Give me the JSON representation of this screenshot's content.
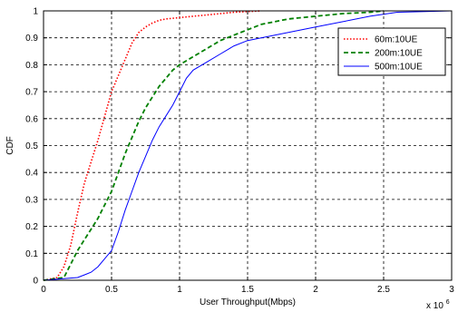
{
  "chart_data": {
    "type": "line",
    "xlabel": "User Throughput(Mbps)",
    "ylabel": "CDF",
    "x_multiplier": "x 10",
    "x_multiplier_exp": "6",
    "xlim": [
      0,
      3000000
    ],
    "ylim": [
      0,
      1
    ],
    "x_ticks": [
      0,
      500000,
      1000000,
      1500000,
      2000000,
      2500000,
      3000000
    ],
    "x_tick_labels": [
      "0",
      "0.5",
      "1",
      "1.5",
      "2",
      "2.5",
      "3"
    ],
    "y_ticks": [
      0,
      0.1,
      0.2,
      0.3,
      0.4,
      0.5,
      0.6,
      0.7,
      0.8,
      0.9,
      1
    ],
    "y_tick_labels": [
      "0",
      "0.1",
      "0.2",
      "0.3",
      "0.4",
      "0.5",
      "0.6",
      "0.7",
      "0.8",
      "0.9",
      "1"
    ],
    "grid": true,
    "legend_position": "top-right",
    "series": [
      {
        "name": "60m:10UE",
        "color": "#ff0000",
        "dash": "dotted",
        "x": [
          0,
          100000,
          150000,
          200000,
          250000,
          300000,
          350000,
          400000,
          450000,
          500000,
          550000,
          600000,
          650000,
          700000,
          750000,
          800000,
          850000,
          900000,
          1000000,
          1100000,
          1200000,
          1400000,
          1600000
        ],
        "y": [
          0,
          0.01,
          0.05,
          0.13,
          0.25,
          0.36,
          0.44,
          0.52,
          0.61,
          0.7,
          0.76,
          0.82,
          0.88,
          0.92,
          0.94,
          0.955,
          0.965,
          0.97,
          0.975,
          0.98,
          0.985,
          0.995,
          1.0
        ]
      },
      {
        "name": "200m:10UE",
        "color": "#008000",
        "dash": "dashed",
        "x": [
          0,
          150000,
          200000,
          250000,
          300000,
          350000,
          400000,
          450000,
          500000,
          550000,
          600000,
          650000,
          700000,
          750000,
          800000,
          850000,
          900000,
          950000,
          1000000,
          1100000,
          1200000,
          1300000,
          1400000,
          1500000,
          1600000,
          1700000,
          1800000,
          2000000,
          2200000,
          2400000,
          2500000
        ],
        "y": [
          0,
          0.01,
          0.06,
          0.11,
          0.15,
          0.19,
          0.23,
          0.28,
          0.33,
          0.4,
          0.47,
          0.53,
          0.59,
          0.64,
          0.68,
          0.72,
          0.75,
          0.78,
          0.8,
          0.83,
          0.86,
          0.89,
          0.91,
          0.93,
          0.95,
          0.96,
          0.97,
          0.98,
          0.99,
          0.995,
          1.0
        ]
      },
      {
        "name": "500m:10UE",
        "color": "#0000ff",
        "dash": "solid",
        "x": [
          0,
          250000,
          300000,
          350000,
          400000,
          450000,
          500000,
          550000,
          600000,
          650000,
          700000,
          750000,
          800000,
          850000,
          900000,
          950000,
          1000000,
          1050000,
          1100000,
          1200000,
          1300000,
          1400000,
          1500000,
          1600000,
          1700000,
          1800000,
          2000000,
          2200000,
          2400000,
          2600000,
          3000000
        ],
        "y": [
          0,
          0.01,
          0.02,
          0.03,
          0.05,
          0.08,
          0.11,
          0.18,
          0.26,
          0.33,
          0.4,
          0.46,
          0.52,
          0.57,
          0.61,
          0.65,
          0.7,
          0.75,
          0.78,
          0.81,
          0.84,
          0.87,
          0.89,
          0.9,
          0.91,
          0.92,
          0.94,
          0.96,
          0.98,
          0.995,
          1.0
        ]
      }
    ]
  }
}
